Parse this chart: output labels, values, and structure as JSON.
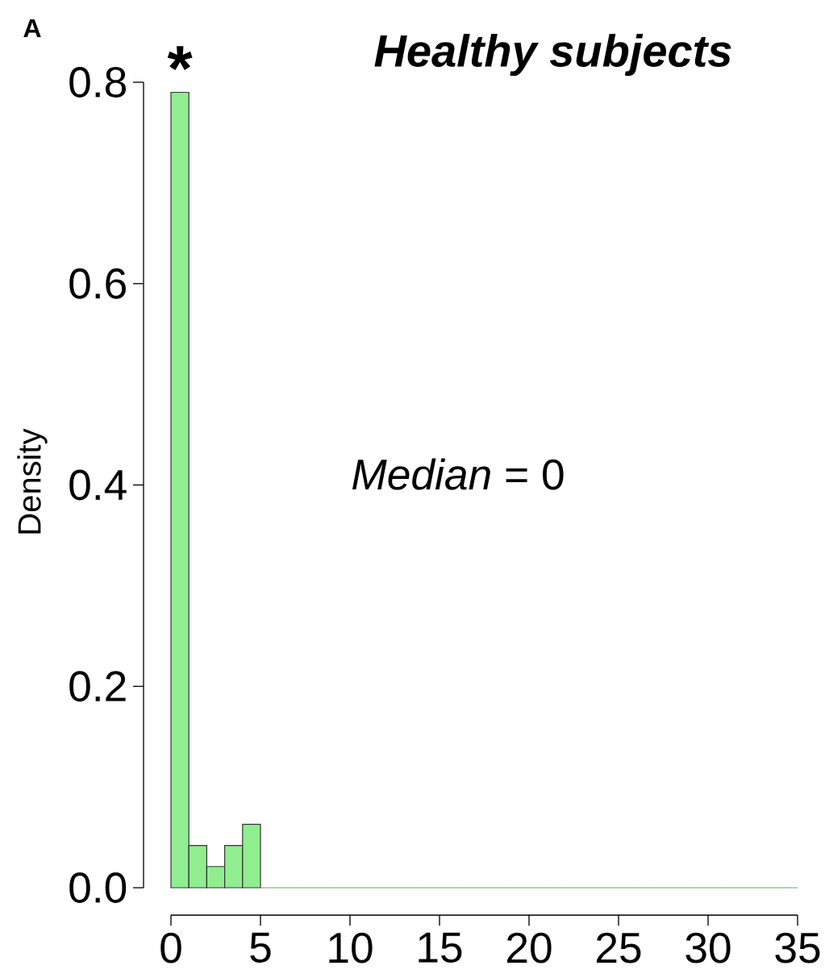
{
  "chart_data": {
    "type": "histogram",
    "title": "Healthy subjects",
    "ylabel": "Density",
    "annotations": [
      "A",
      {
        "text": "*",
        "x": 0.5,
        "y": 0.79
      },
      "*Median* = 0"
    ],
    "bins": [
      0,
      1,
      2,
      3,
      4,
      5,
      6,
      7,
      8,
      9,
      10,
      11,
      12,
      13,
      14,
      15,
      16,
      17,
      18,
      19,
      20,
      21,
      22,
      23,
      24,
      25,
      26,
      27,
      28,
      29,
      30,
      31,
      32,
      33,
      34,
      35
    ],
    "values": [
      0.79,
      0.042,
      0.021,
      0.042,
      0.063,
      0,
      0,
      0,
      0,
      0,
      0,
      0,
      0,
      0,
      0,
      0,
      0,
      0,
      0,
      0,
      0,
      0,
      0,
      0,
      0,
      0,
      0,
      0,
      0,
      0,
      0,
      0,
      0,
      0,
      0
    ],
    "color": "#90ee90",
    "xlim": [
      0,
      35
    ],
    "ylim": [
      0,
      0.8
    ],
    "xticks": [
      0,
      5,
      10,
      15,
      20,
      25,
      30,
      35
    ],
    "yticks": [
      {
        "value": 0,
        "label": "0.0"
      },
      {
        "value": 0.2,
        "label": "0.2"
      },
      {
        "value": 0.4,
        "label": "0.4"
      },
      {
        "value": 0.6,
        "label": "0.6"
      },
      {
        "value": 0.8,
        "label": "0.8"
      }
    ]
  }
}
